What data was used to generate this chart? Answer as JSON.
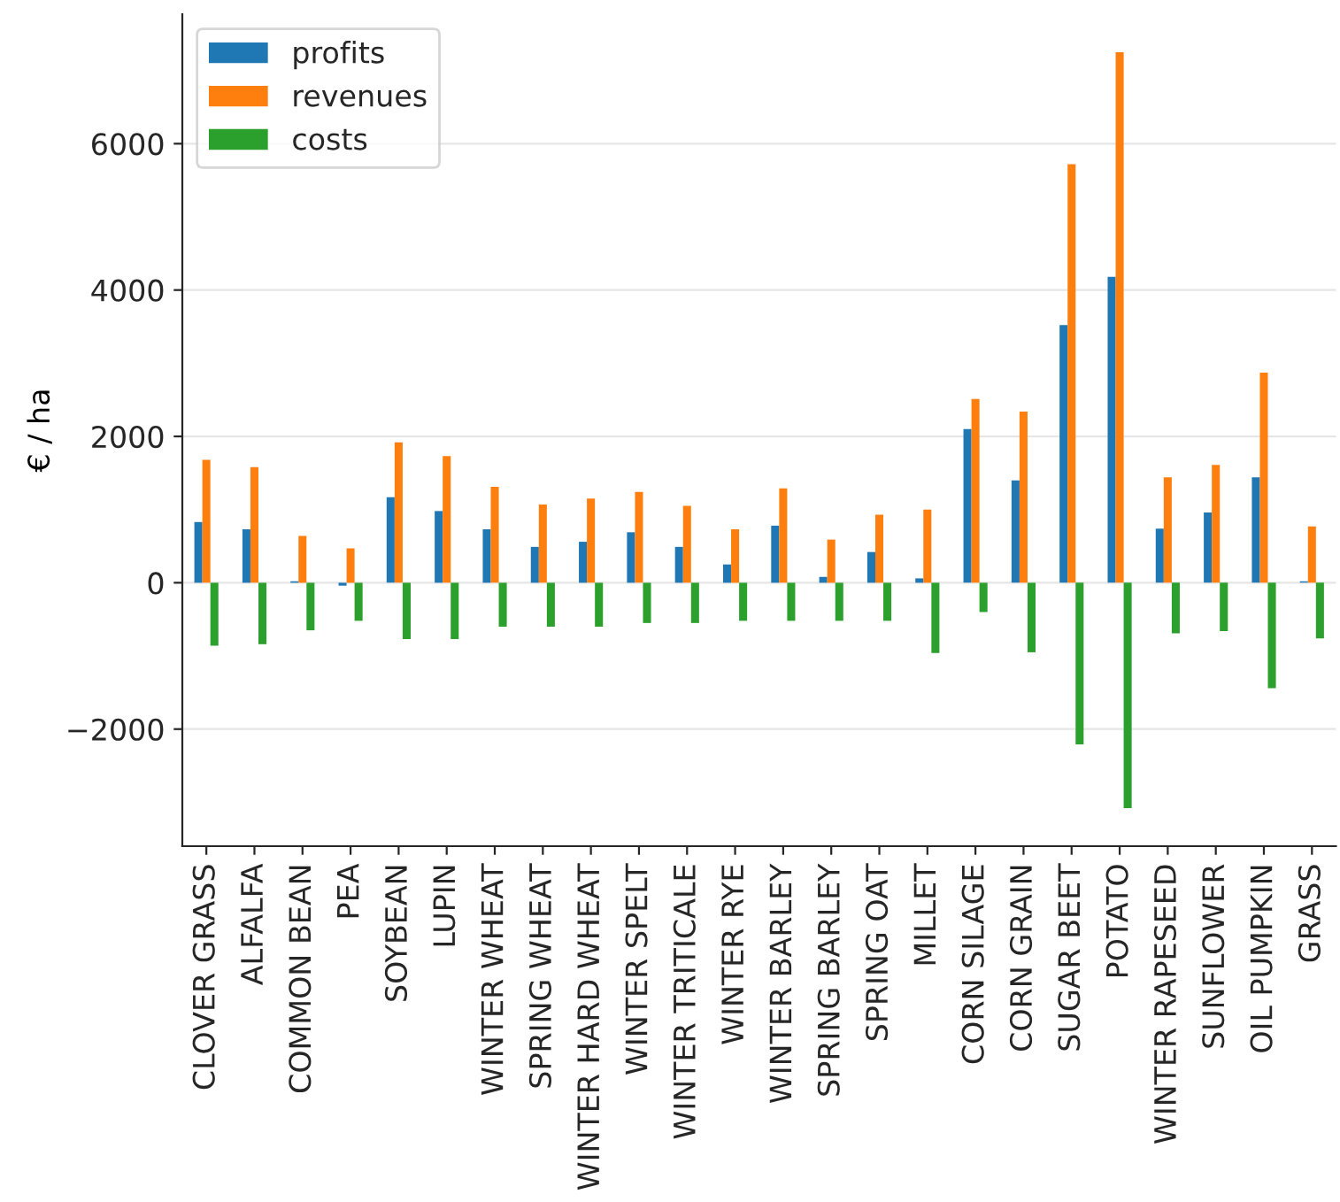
{
  "chart_data": {
    "type": "bar",
    "ylabel": "€ / ha",
    "categories": [
      "CLOVER GRASS",
      "ALFALFA",
      "COMMON BEAN",
      "PEA",
      "SOYBEAN",
      "LUPIN",
      "WINTER WHEAT",
      "SPRING WHEAT",
      "WINTER HARD WHEAT",
      "WINTER SPELT",
      "WINTER TRITICALE",
      "WINTER RYE",
      "WINTER BARLEY",
      "SPRING BARLEY",
      "SPRING OAT",
      "MILLET",
      "CORN SILAGE",
      "CORN GRAIN",
      "SUGAR BEET",
      "POTATO",
      "WINTER RAPESEED",
      "SUNFLOWER",
      "OIL PUMPKIN",
      "GRASS"
    ],
    "series": [
      {
        "name": "profits",
        "color": "#1f77b4",
        "values": [
          830,
          730,
          20,
          -40,
          1170,
          980,
          730,
          490,
          560,
          690,
          490,
          250,
          780,
          80,
          420,
          60,
          2100,
          1400,
          3520,
          4180,
          740,
          960,
          1440,
          20
        ]
      },
      {
        "name": "revenues",
        "color": "#ff7f0e",
        "values": [
          1680,
          1580,
          640,
          470,
          1920,
          1730,
          1310,
          1070,
          1150,
          1240,
          1050,
          730,
          1290,
          590,
          930,
          1000,
          2510,
          2340,
          5720,
          7250,
          1440,
          1610,
          2870,
          770
        ]
      },
      {
        "name": "costs",
        "color": "#2ca02c",
        "values": [
          -860,
          -840,
          -650,
          -520,
          -770,
          -770,
          -600,
          -600,
          -600,
          -550,
          -550,
          -520,
          -520,
          -520,
          -520,
          -960,
          -400,
          -950,
          -2210,
          -3080,
          -690,
          -660,
          -1440,
          -760
        ]
      }
    ],
    "ylim": [
      -3600,
      7770
    ],
    "yticks": [
      {
        "value": -2000,
        "label": "−2000"
      },
      0,
      2000,
      4000,
      6000
    ],
    "grid": "y",
    "legend": "top left"
  }
}
